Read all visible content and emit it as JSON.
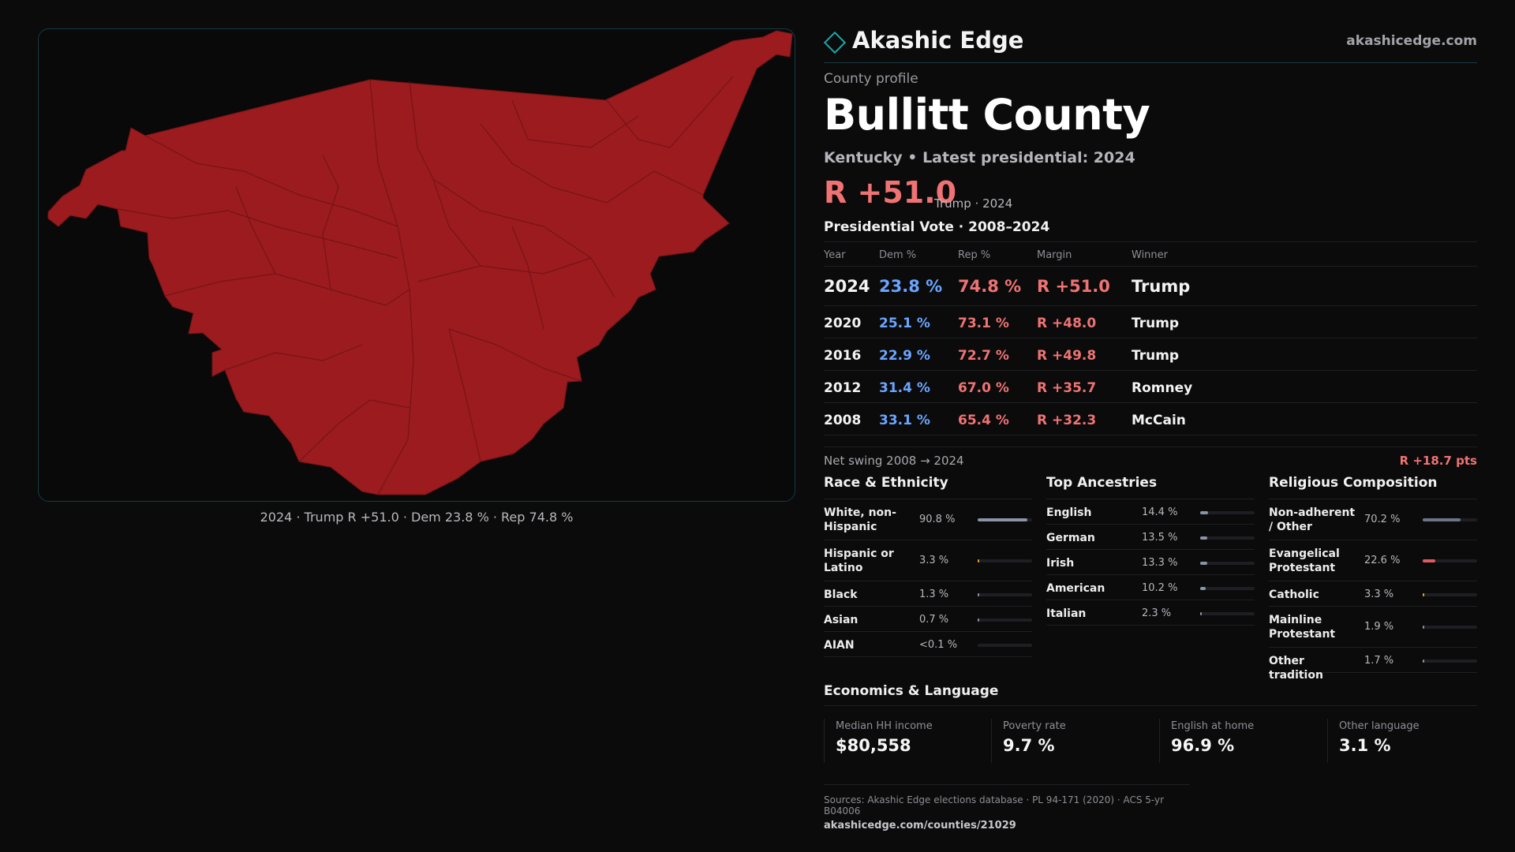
{
  "brand": {
    "name": "Akashic Edge",
    "url": "akashicedge.com",
    "icon": "diamond-outline-icon",
    "accent": "#1ba9a9"
  },
  "profile": {
    "kicker": "County profile",
    "county": "Bullitt County",
    "subtitle": "Kentucky • Latest presidential: 2024",
    "margin": "R +51.0",
    "margin_note": "Trump · 2024"
  },
  "map": {
    "caption": "2024 · Trump R +51.0 · Dem 23.8 % · Rep 74.8 %",
    "fill_color": "#9b1b1e"
  },
  "vote": {
    "title": "Presidential Vote · 2008–2024",
    "headers": {
      "year": "Year",
      "dem": "Dem %",
      "rep": "Rep %",
      "margin": "Margin",
      "winner": "Winner"
    },
    "rows": [
      {
        "year": "2024",
        "dem": "23.8 %",
        "rep": "74.8 %",
        "margin": "R +51.0",
        "winner": "Trump"
      },
      {
        "year": "2020",
        "dem": "25.1 %",
        "rep": "73.1 %",
        "margin": "R +48.0",
        "winner": "Trump"
      },
      {
        "year": "2016",
        "dem": "22.9 %",
        "rep": "72.7 %",
        "margin": "R +49.8",
        "winner": "Trump"
      },
      {
        "year": "2012",
        "dem": "31.4 %",
        "rep": "67.0 %",
        "margin": "R +35.7",
        "winner": "Romney"
      },
      {
        "year": "2008",
        "dem": "33.1 %",
        "rep": "65.4 %",
        "margin": "R +32.3",
        "winner": "McCain"
      }
    ],
    "swing_label": "Net swing 2008 → 2024",
    "swing_value": "R +18.7 pts"
  },
  "race": {
    "title": "Race & Ethnicity",
    "items": [
      {
        "label": "White, non-Hispanic",
        "value": "90.8 %",
        "share": 0.908,
        "color": "#8b93a6"
      },
      {
        "label": "Hispanic or Latino",
        "value": "3.3 %",
        "share": 0.033,
        "color": "#e0a030"
      },
      {
        "label": "Black",
        "value": "1.3 %",
        "share": 0.013,
        "color": "#8b93a6"
      },
      {
        "label": "Asian",
        "value": "0.7 %",
        "share": 0.007,
        "color": "#8b93a6"
      },
      {
        "label": "AIAN",
        "value": "<0.1 %",
        "share": 0.0,
        "color": "#8b93a6"
      }
    ]
  },
  "ancestry": {
    "title": "Top Ancestries",
    "items": [
      {
        "label": "English",
        "value": "14.4 %",
        "share": 0.144,
        "color": "#8b93a6"
      },
      {
        "label": "German",
        "value": "13.5 %",
        "share": 0.135,
        "color": "#8b93a6"
      },
      {
        "label": "Irish",
        "value": "13.3 %",
        "share": 0.133,
        "color": "#8b93a6"
      },
      {
        "label": "American",
        "value": "10.2 %",
        "share": 0.102,
        "color": "#8b93a6"
      },
      {
        "label": "Italian",
        "value": "2.3 %",
        "share": 0.023,
        "color": "#8b93a6"
      }
    ]
  },
  "religion": {
    "title": "Religious Composition",
    "items": [
      {
        "label": "Non-adherent / Other",
        "value": "70.2 %",
        "share": 0.702,
        "color": "#6d7588"
      },
      {
        "label": "Evangelical Protestant",
        "value": "22.6 %",
        "share": 0.226,
        "color": "#e05a63"
      },
      {
        "label": "Catholic",
        "value": "3.3 %",
        "share": 0.033,
        "color": "#e0a030"
      },
      {
        "label": "Mainline Protestant",
        "value": "1.9 %",
        "share": 0.019,
        "color": "#8b93a6"
      },
      {
        "label": "Other tradition",
        "value": "1.7 %",
        "share": 0.017,
        "color": "#8b93a6"
      }
    ]
  },
  "economics": {
    "title": "Economics & Language",
    "cards": [
      {
        "label": "Median HH income",
        "value": "$80,558"
      },
      {
        "label": "Poverty rate",
        "value": "9.7 %"
      },
      {
        "label": "English at home",
        "value": "96.9 %"
      },
      {
        "label": "Other language",
        "value": "3.1 %"
      }
    ]
  },
  "sources": {
    "line": "Sources: Akashic Edge elections database · PL 94-171 (2020) · ACS 5-yr B04006",
    "url": "akashicedge.com/counties/21029"
  }
}
